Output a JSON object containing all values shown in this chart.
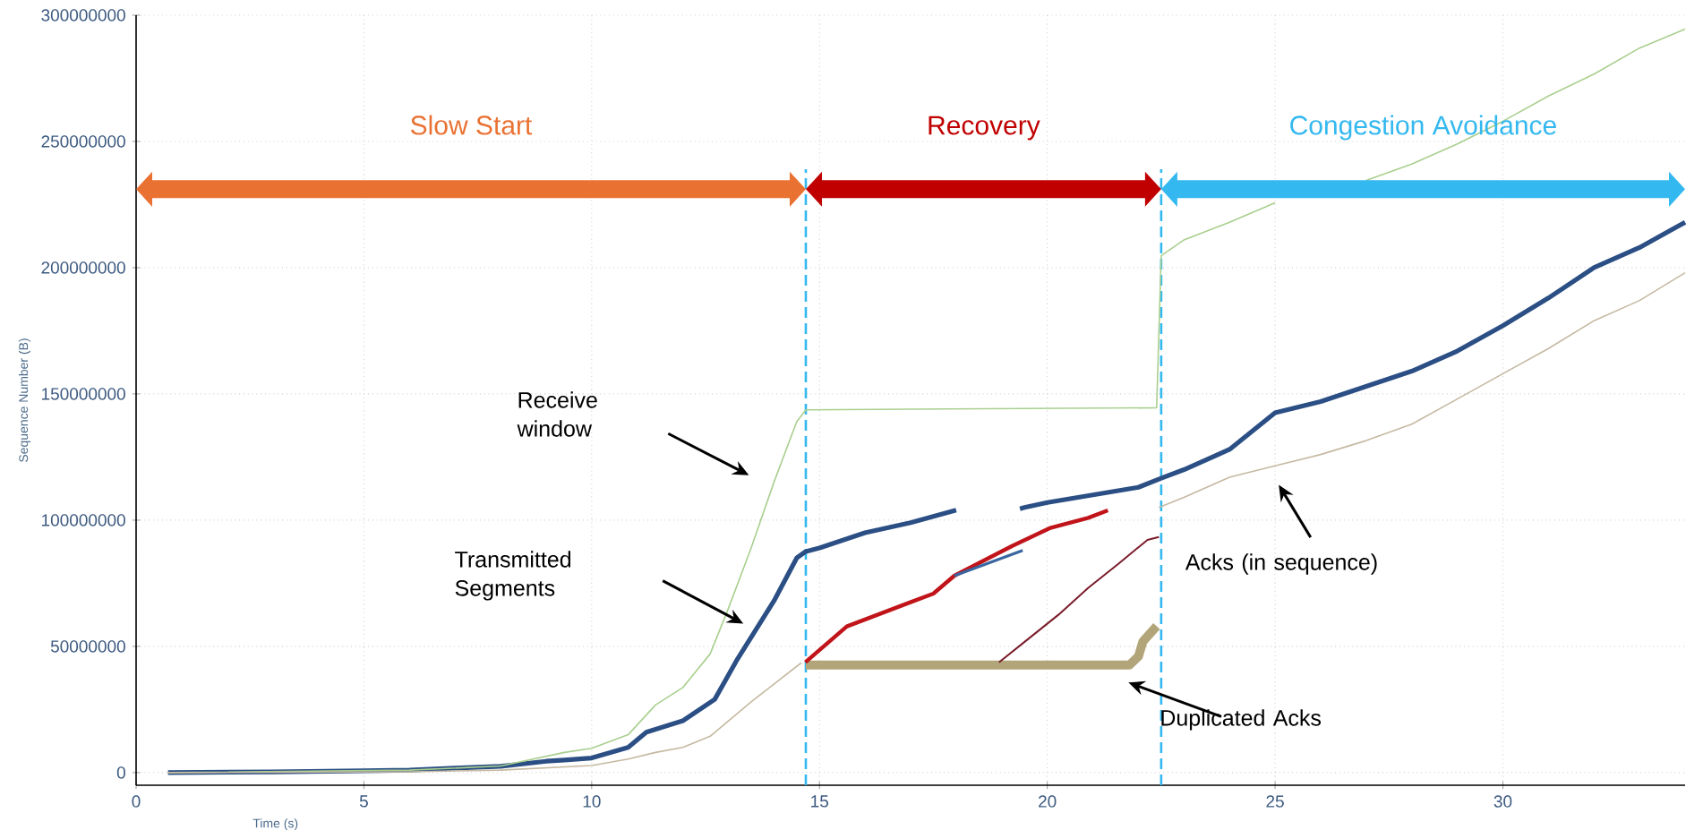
{
  "chart_data": {
    "type": "line",
    "xlabel": "Time (s)",
    "ylabel": "Sequence Number (B)",
    "xlim": [
      0,
      34
    ],
    "ylim": [
      -5000000,
      300000000
    ],
    "xticks": [
      0,
      5,
      10,
      15,
      20,
      25,
      30
    ],
    "yticks": [
      0,
      50000000,
      100000000,
      150000000,
      200000000,
      250000000,
      300000000
    ],
    "grid": true,
    "marker": "none",
    "line_style": "solid",
    "series": [
      {
        "color": "#2b4f84",
        "x": [
          0.7,
          3,
          5,
          6,
          7,
          8,
          9,
          9.4,
          10,
          10.8,
          11.2,
          12,
          12.7,
          13.2,
          14,
          14.5,
          14.7,
          15,
          16,
          17,
          18,
          18.1,
          19.4,
          19.5,
          20,
          21,
          22,
          22.5,
          23,
          24,
          25,
          26,
          27,
          28,
          29,
          30,
          31,
          32,
          33,
          34
        ],
        "values": [
          0,
          300000,
          700000,
          1000000,
          1800000,
          2500000,
          4500000,
          5000000,
          5800000,
          10000000,
          16000000,
          20500000,
          29000000,
          45000000,
          68000000,
          85000000,
          87600000,
          89000000,
          95000000,
          99000000,
          104000000,
          null,
          104500000,
          105000000,
          107000000,
          110000000,
          113000000,
          116600000,
          120000000,
          128000000,
          142500000,
          147000000,
          153000000,
          159000000,
          167000000,
          177000000,
          188000000,
          200000000,
          208000000,
          218000000
        ]
      },
      {
        "color": "#a9cf8e",
        "x": [
          0.7,
          6,
          8,
          9.4,
          10,
          10.8,
          11.4,
          12,
          12.6,
          13,
          13.5,
          14,
          14.5,
          14.7,
          22.4,
          22.5,
          23,
          24,
          25,
          26,
          27,
          28,
          29,
          30,
          31,
          32,
          33,
          34
        ],
        "values": [
          0,
          1000000,
          2600000,
          8000000,
          9600000,
          15000000,
          26800000,
          33700000,
          47000000,
          65000000,
          89000000,
          115000000,
          139000000,
          143700000,
          144500000,
          204700000,
          211000000,
          218000000,
          225700000,
          null,
          234600000,
          241000000,
          249000000,
          258000000,
          268000000,
          276700000,
          287000000,
          294500000
        ]
      },
      {
        "color": "#c5b9a2",
        "x": [
          0.7,
          6,
          8,
          10,
          10.8,
          11.4,
          12,
          12.6,
          13.5,
          14.6,
          14.65,
          22.45,
          23,
          24,
          25,
          26,
          27,
          28,
          29,
          30,
          31,
          32,
          33,
          34
        ],
        "values": [
          0,
          300000,
          1000000,
          2800000,
          5400000,
          8000000,
          10000000,
          14400000,
          28000000,
          43500000,
          null,
          105000000,
          109000000,
          117000000,
          121500000,
          126000000,
          131500000,
          138000000,
          148000000,
          158000000,
          168000000,
          179000000,
          187000000,
          198000000
        ]
      },
      {
        "color": "#b3a57a",
        "x": [
          14.7,
          21.8,
          22.0,
          22.1,
          22.4
        ],
        "values": [
          42600000,
          42600000,
          46000000,
          52000000,
          58000000
        ]
      },
      {
        "color": "#c0141a",
        "x": [
          14.69,
          15.6,
          16.97,
          17.5,
          17.96,
          19.22,
          20.05,
          20.9,
          21.33
        ],
        "values": [
          43700000,
          57900000,
          67300000,
          70900000,
          78000000,
          89700000,
          96800000,
          100900000,
          103900000
        ]
      },
      {
        "color": "#7a1c2a",
        "x": [
          18.94,
          19.6,
          20.25,
          20.9,
          21.56,
          22.2,
          22.45
        ],
        "values": [
          43700000,
          53200000,
          62600000,
          73200000,
          82700000,
          92200000,
          93300000
        ]
      },
      {
        "color": "#3a66a0",
        "x": [
          17.96,
          19.46
        ],
        "values": [
          78000000,
          88000000
        ]
      }
    ],
    "ref_lines": [
      {
        "axis": "x",
        "value": 14.7,
        "color": "#33b8f0",
        "line_style": "dashed"
      },
      {
        "axis": "x",
        "value": 22.5,
        "color": "#33b8f0",
        "line_style": "dashed"
      }
    ],
    "annotations": [
      "Slow Start",
      "Recovery",
      "Congestion Avoidance",
      "Receive window",
      "Transmitted Segments",
      "Acks (in sequence)",
      "Duplicated Acks"
    ]
  }
}
